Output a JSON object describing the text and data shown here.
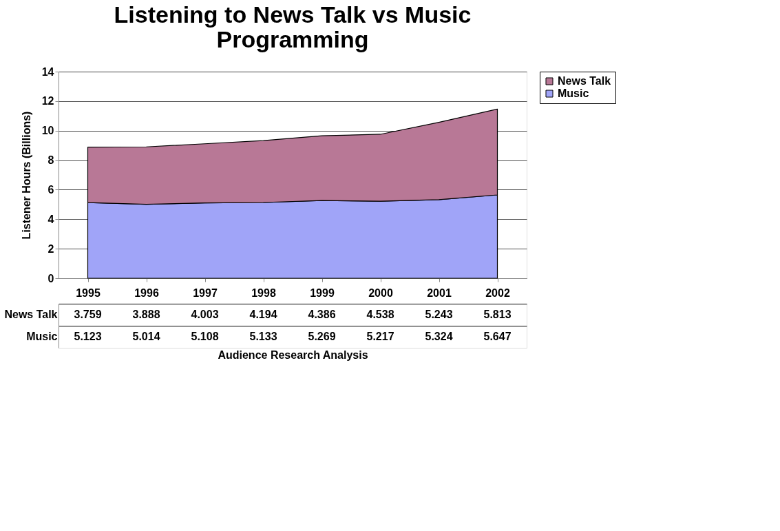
{
  "chart_data": {
    "type": "area",
    "title": "Listening to News Talk vs Music Programming",
    "ylabel": "Listener Hours (Billions)",
    "xlabel": "Audience Research Analysis",
    "categories": [
      "1995",
      "1996",
      "1997",
      "1998",
      "1999",
      "2000",
      "2001",
      "2002"
    ],
    "series": [
      {
        "name": "Music",
        "color": "#a0a4f8",
        "values": [
          5.123,
          5.014,
          5.108,
          5.133,
          5.269,
          5.217,
          5.324,
          5.647
        ]
      },
      {
        "name": "News Talk",
        "color": "#b87896",
        "values": [
          3.759,
          3.888,
          4.003,
          4.194,
          4.386,
          4.538,
          5.243,
          5.813
        ]
      }
    ],
    "stacked": true,
    "ylim": [
      0,
      14
    ],
    "yticks": [
      0,
      2,
      4,
      6,
      8,
      10,
      12,
      14
    ],
    "grid": "y",
    "legend": "right",
    "data_labels": true
  }
}
